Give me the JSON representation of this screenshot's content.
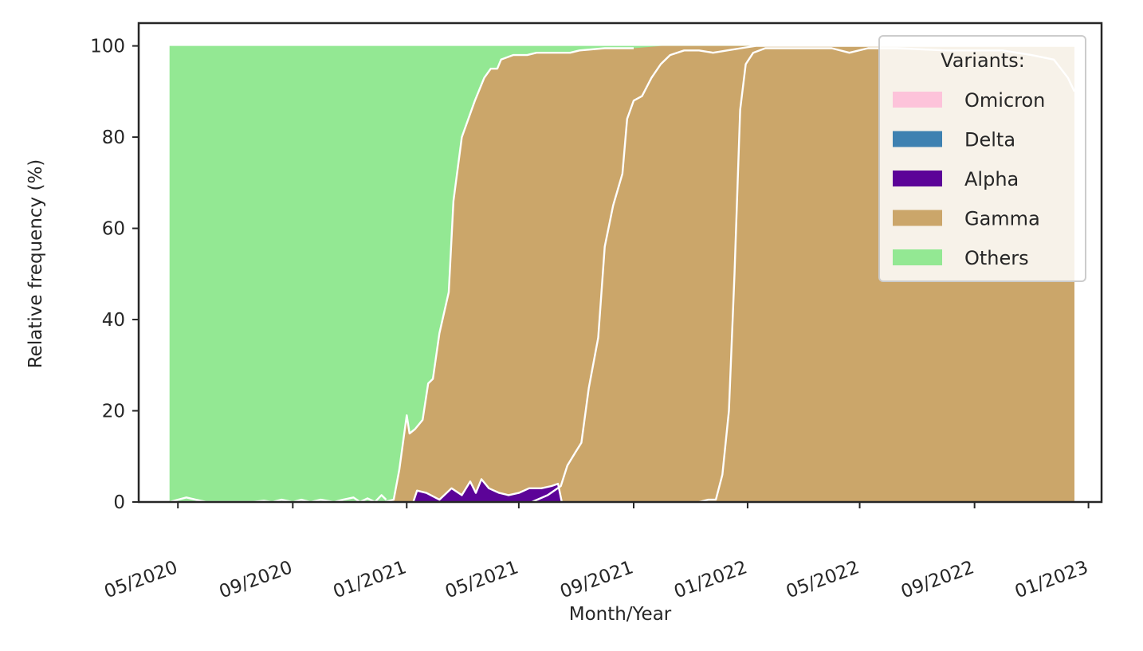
{
  "chart_data": {
    "type": "area",
    "stacked": true,
    "normalized": true,
    "xlabel": "Month/Year",
    "ylabel": "Relative frequency (%)",
    "xlim": [
      "2020-03-20",
      "2023-01-15"
    ],
    "ylim": [
      0,
      105
    ],
    "x_ticks": [
      "2020-05-01",
      "2020-09-01",
      "2021-01-01",
      "2021-05-01",
      "2021-09-01",
      "2022-01-01",
      "2022-05-01",
      "2022-09-01",
      "2023-01-01"
    ],
    "x_tick_labels": [
      "05/2020",
      "09/2020",
      "01/2021",
      "05/2021",
      "09/2021",
      "01/2022",
      "05/2022",
      "09/2022",
      "01/2023"
    ],
    "y_ticks": [
      0,
      20,
      40,
      60,
      80,
      100
    ],
    "y_tick_labels": [
      "0",
      "20",
      "40",
      "60",
      "80",
      "100"
    ],
    "grid": false,
    "legend": {
      "title": "Variants:",
      "position": "top-right",
      "entries": [
        "Omicron",
        "Delta",
        "Alpha",
        "Gamma",
        "Others"
      ]
    },
    "colors": {
      "Others": "#93e893",
      "Gamma": "#cba66a",
      "Alpha": "#5c0398",
      "Delta": "#3e81b1",
      "Omicron": "#fdc3da",
      "separator": "#ffffff"
    },
    "stack_order": [
      "Alpha",
      "Gamma",
      "Delta",
      "Omicron",
      "Others"
    ],
    "cumulative_boundaries": {
      "Alpha": [
        [
          "2020-04-22",
          0
        ],
        [
          "2021-01-08",
          0
        ],
        [
          "2021-01-12",
          2.5
        ],
        [
          "2021-01-22",
          2
        ],
        [
          "2021-02-05",
          0.5
        ],
        [
          "2021-02-18",
          3
        ],
        [
          "2021-03-01",
          1.5
        ],
        [
          "2021-03-10",
          4.5
        ],
        [
          "2021-03-16",
          2
        ],
        [
          "2021-03-22",
          5
        ],
        [
          "2021-03-30",
          3
        ],
        [
          "2021-04-10",
          2
        ],
        [
          "2021-04-20",
          1.5
        ],
        [
          "2021-05-01",
          2
        ],
        [
          "2021-05-12",
          3
        ],
        [
          "2021-05-25",
          3
        ],
        [
          "2021-06-05",
          3.5
        ],
        [
          "2021-06-12",
          4
        ],
        [
          "2021-06-16",
          0
        ],
        [
          "2022-12-17",
          0
        ]
      ],
      "Gamma": [
        [
          "2020-04-22",
          0
        ],
        [
          "2020-12-08",
          0
        ],
        [
          "2020-12-18",
          0.5
        ],
        [
          "2020-12-24",
          7
        ],
        [
          "2021-01-01",
          19
        ],
        [
          "2021-01-04",
          15
        ],
        [
          "2021-01-10",
          16
        ],
        [
          "2021-01-18",
          18
        ],
        [
          "2021-01-24",
          26
        ],
        [
          "2021-01-29",
          27
        ],
        [
          "2021-02-05",
          37
        ],
        [
          "2021-02-15",
          46
        ],
        [
          "2021-02-20",
          66
        ],
        [
          "2021-03-01",
          80
        ],
        [
          "2021-03-15",
          88
        ],
        [
          "2021-03-25",
          93
        ],
        [
          "2021-04-01",
          95
        ],
        [
          "2021-04-08",
          95
        ],
        [
          "2021-04-12",
          97
        ],
        [
          "2021-04-25",
          98
        ],
        [
          "2021-05-10",
          98
        ],
        [
          "2021-05-20",
          98.5
        ],
        [
          "2021-06-10",
          98.5
        ],
        [
          "2021-06-25",
          98.5
        ],
        [
          "2021-07-05",
          99
        ],
        [
          "2021-08-01",
          99.5
        ],
        [
          "2021-08-20",
          99.5
        ],
        [
          "2021-09-01",
          99.5
        ],
        [
          "2021-10-01",
          100
        ],
        [
          "2022-12-17",
          100
        ]
      ],
      "Delta": [
        [
          "2020-04-22",
          0
        ],
        [
          "2021-05-15",
          0
        ],
        [
          "2021-06-01",
          1.5
        ],
        [
          "2021-06-15",
          3.5
        ],
        [
          "2021-06-22",
          8
        ],
        [
          "2021-07-01",
          11
        ],
        [
          "2021-07-07",
          13
        ],
        [
          "2021-07-15",
          25
        ],
        [
          "2021-07-25",
          36
        ],
        [
          "2021-08-01",
          56
        ],
        [
          "2021-08-10",
          65
        ],
        [
          "2021-08-20",
          72
        ],
        [
          "2021-08-25",
          84
        ],
        [
          "2021-09-01",
          88
        ],
        [
          "2021-09-10",
          89
        ],
        [
          "2021-09-20",
          93
        ],
        [
          "2021-09-30",
          96
        ],
        [
          "2021-10-10",
          98
        ],
        [
          "2021-10-25",
          99
        ],
        [
          "2021-11-10",
          99
        ],
        [
          "2021-11-25",
          98.5
        ],
        [
          "2021-12-10",
          99
        ],
        [
          "2021-12-25",
          99.5
        ],
        [
          "2022-01-10",
          100
        ],
        [
          "2022-12-17",
          100
        ]
      ],
      "Omicron": [
        [
          "2020-04-22",
          0
        ],
        [
          "2021-11-10",
          0
        ],
        [
          "2021-11-20",
          0.5
        ],
        [
          "2021-11-28",
          0.5
        ],
        [
          "2021-12-05",
          6
        ],
        [
          "2021-12-12",
          20
        ],
        [
          "2021-12-18",
          50
        ],
        [
          "2021-12-24",
          86
        ],
        [
          "2021-12-30",
          96
        ],
        [
          "2022-01-07",
          98.5
        ],
        [
          "2022-01-20",
          99.5
        ],
        [
          "2022-02-10",
          99.5
        ],
        [
          "2022-03-10",
          99.5
        ],
        [
          "2022-04-01",
          99.5
        ],
        [
          "2022-04-20",
          98.5
        ],
        [
          "2022-05-10",
          99.5
        ],
        [
          "2022-06-10",
          99.5
        ],
        [
          "2022-08-01",
          99
        ],
        [
          "2022-10-01",
          99
        ],
        [
          "2022-11-01",
          98
        ],
        [
          "2022-11-25",
          97
        ],
        [
          "2022-12-10",
          93
        ],
        [
          "2022-12-17",
          90
        ]
      ],
      "Others": [
        [
          "2020-04-22",
          100
        ],
        [
          "2022-12-17",
          100
        ]
      ]
    },
    "others_lower_edge": [
      [
        "2020-04-22",
        0
      ],
      [
        "2020-05-01",
        0.5
      ],
      [
        "2020-05-10",
        1
      ],
      [
        "2020-05-20",
        0.5
      ],
      [
        "2020-06-01",
        0
      ],
      [
        "2020-07-01",
        0
      ],
      [
        "2020-07-20",
        0
      ],
      [
        "2020-08-01",
        0.3
      ],
      [
        "2020-08-10",
        0
      ],
      [
        "2020-08-20",
        0.5
      ],
      [
        "2020-09-01",
        0
      ],
      [
        "2020-09-10",
        0.5
      ],
      [
        "2020-09-20",
        0
      ],
      [
        "2020-10-01",
        0.5
      ],
      [
        "2020-10-15",
        0
      ],
      [
        "2020-10-25",
        0.5
      ],
      [
        "2020-11-05",
        1
      ],
      [
        "2020-11-12",
        0
      ],
      [
        "2020-11-20",
        0.8
      ],
      [
        "2020-11-28",
        0
      ],
      [
        "2020-12-05",
        1.5
      ],
      [
        "2020-12-10",
        0.5
      ]
    ]
  }
}
